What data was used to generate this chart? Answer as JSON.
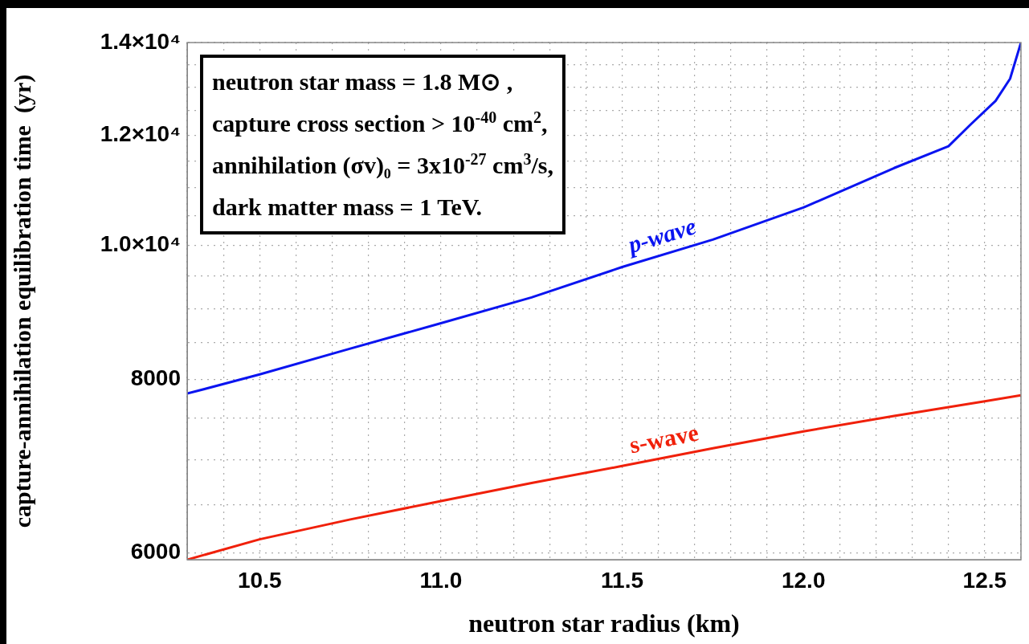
{
  "chart_data": {
    "type": "line",
    "xlabel": "neutron star radius (km)",
    "ylabel": "capture-annihilation equilibration time  (yr)",
    "annotations": [
      "neutron star mass = 1.8 M⊙ ,",
      "capture cross section > 10$^{-40}$ cm$^{2}$,",
      "annihilation (σv)₀ = 3x10$^{-27}$ cm$^{3}$/s,",
      "dark matter mass = 1 TeV."
    ],
    "series": [
      {
        "name": "p-wave",
        "color": "#0a14f0",
        "x": [
          10.3,
          10.5,
          10.75,
          11.0,
          11.25,
          11.5,
          11.75,
          12.0,
          12.25,
          12.4,
          12.46,
          12.53,
          12.57,
          12.6
        ],
        "values": [
          7814,
          8067,
          8420,
          8784,
          9168,
          9643,
          10092,
          10644,
          11366,
          11785,
          12211,
          12707,
          13184,
          14000
        ]
      },
      {
        "name": "s-wave",
        "color": "#f0200a",
        "x": [
          10.3,
          10.5,
          10.75,
          11.0,
          11.25,
          11.5,
          11.75,
          12.0,
          12.25,
          12.5,
          12.6
        ],
        "values": [
          5930,
          6134,
          6340,
          6537,
          6735,
          6929,
          7135,
          7338,
          7530,
          7714,
          7792
        ]
      }
    ],
    "xlim": [
      10.3,
      12.6
    ],
    "xticks": [
      {
        "value": 10.3,
        "label": null
      },
      {
        "value": 10.4,
        "label": null
      },
      10.5,
      {
        "value": 10.6,
        "label": null
      },
      {
        "value": 10.7,
        "label": null
      },
      {
        "value": 10.8,
        "label": null
      },
      {
        "value": 10.9,
        "label": null
      },
      {
        "value": 11,
        "label": "11.0"
      },
      {
        "value": 11.1,
        "label": null
      },
      {
        "value": 11.2,
        "label": null
      },
      {
        "value": 11.3,
        "label": null
      },
      {
        "value": 11.4,
        "label": null
      },
      11.5,
      {
        "value": 11.6,
        "label": null
      },
      {
        "value": 11.7,
        "label": null
      },
      {
        "value": 11.8,
        "label": null
      },
      {
        "value": 11.9,
        "label": null
      },
      {
        "value": 12,
        "label": "12.0"
      },
      {
        "value": 12.1,
        "label": null
      },
      {
        "value": 12.2,
        "label": null
      },
      {
        "value": 12.3,
        "label": null
      },
      {
        "value": 12.4,
        "label": null
      },
      12.5,
      {
        "value": 12.6,
        "label": null
      }
    ],
    "ylim": [
      5930,
      14000
    ],
    "log": true,
    "yticks": [
      6000,
      {
        "value": 6500,
        "label": null
      },
      {
        "value": 7000,
        "label": null
      },
      {
        "value": 7500,
        "label": null
      },
      8000,
      {
        "value": 8500,
        "label": null
      },
      {
        "value": 9000,
        "label": null
      },
      {
        "value": 9500,
        "label": null
      },
      {
        "value": 10000,
        "label": "1.0×10⁴"
      },
      {
        "value": 10500,
        "label": null
      },
      {
        "value": 11000,
        "label": null
      },
      {
        "value": 11500,
        "label": null
      },
      {
        "value": 12000,
        "label": "1.2×10⁴"
      },
      {
        "value": 12500,
        "label": null
      },
      {
        "value": 13000,
        "label": null
      },
      {
        "value": 13500,
        "label": null
      },
      {
        "value": 14000,
        "label": "1.4×10⁴"
      }
    ],
    "grid": true,
    "legend": false,
    "marker": "none",
    "line_style": "solid"
  }
}
